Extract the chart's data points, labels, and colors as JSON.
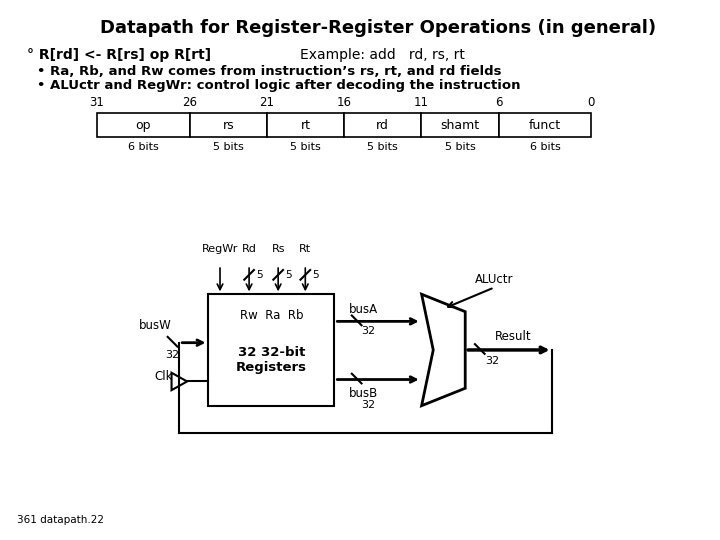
{
  "title": "Datapath for Register-Register Operations (in general)",
  "bit_positions": [
    "31",
    "26",
    "21",
    "16",
    "11",
    "6",
    "0"
  ],
  "fields": [
    "op",
    "rs",
    "rt",
    "rd",
    "shamt",
    "funct"
  ],
  "field_bits": [
    "6 bits",
    "5 bits",
    "5 bits",
    "5 bits",
    "5 bits",
    "6 bits"
  ],
  "field_units": [
    6,
    5,
    5,
    5,
    5,
    6
  ],
  "bg_color": "#ffffff",
  "text_color": "#000000",
  "footer": "361 datapath.22"
}
